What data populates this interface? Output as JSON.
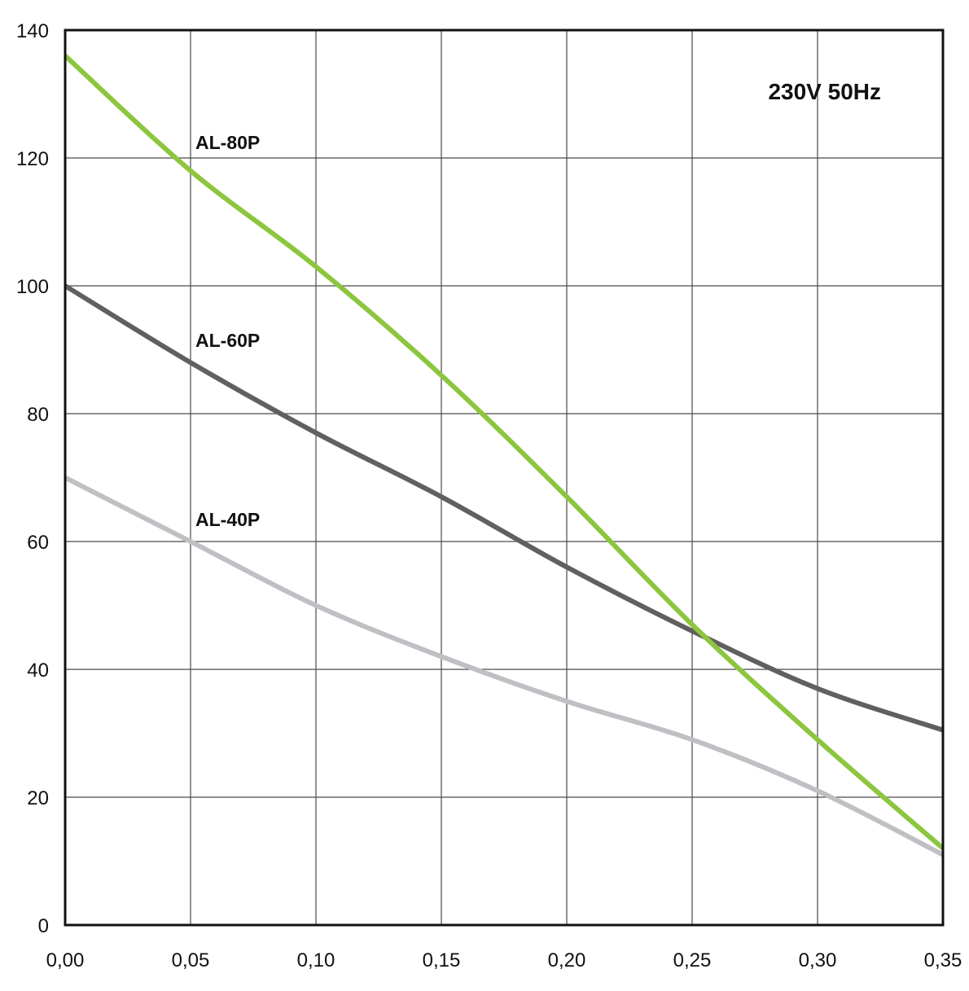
{
  "chart_data": {
    "type": "line",
    "title": "",
    "xlabel": "",
    "ylabel": "",
    "xlim": [
      0,
      0.35
    ],
    "ylim": [
      0,
      140
    ],
    "grid": true,
    "legend": "inline labels",
    "annotation": "230V 50Hz",
    "x_ticks": [
      "0,00",
      "0,05",
      "0,10",
      "0,15",
      "0,20",
      "0,25",
      "0,30",
      "0,35"
    ],
    "x_tick_values": [
      0,
      0.05,
      0.1,
      0.15,
      0.2,
      0.25,
      0.3,
      0.35
    ],
    "y_ticks": [
      "0",
      "20",
      "40",
      "60",
      "80",
      "100",
      "120",
      "140"
    ],
    "y_tick_values": [
      0,
      20,
      40,
      60,
      80,
      100,
      120,
      140
    ],
    "series": [
      {
        "name": "AL-80P",
        "color": "#8cc63f",
        "x": [
          0,
          0.05,
          0.1,
          0.15,
          0.2,
          0.25,
          0.3,
          0.35
        ],
        "y": [
          136,
          118,
          103,
          86,
          67,
          47,
          29,
          12
        ]
      },
      {
        "name": "AL-60P",
        "color": "#606060",
        "x": [
          0,
          0.05,
          0.1,
          0.15,
          0.2,
          0.25,
          0.3,
          0.35
        ],
        "y": [
          100,
          88,
          77,
          67,
          56,
          46,
          37,
          30.5
        ]
      },
      {
        "name": "AL-40P",
        "color": "#c0c0c4",
        "x": [
          0,
          0.05,
          0.1,
          0.15,
          0.2,
          0.25,
          0.3,
          0.35
        ],
        "y": [
          70,
          60,
          50,
          42,
          35,
          29,
          21,
          11
        ]
      }
    ]
  }
}
